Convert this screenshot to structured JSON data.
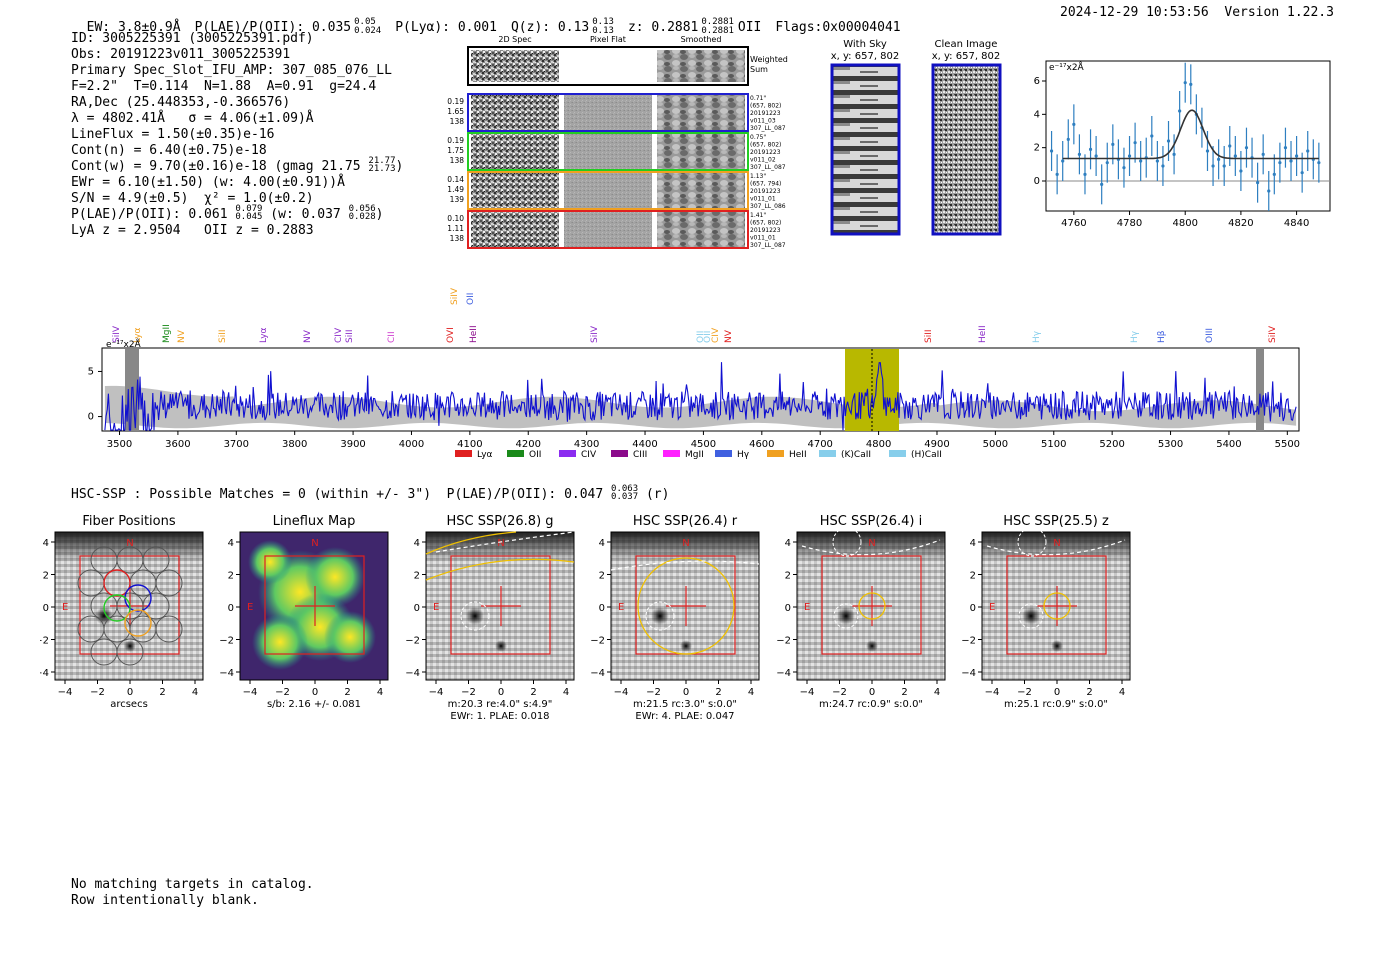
{
  "header": {
    "ew": "EW: 3.8±0.9Å",
    "plae": "P(LAE)/P(OII): 0.035",
    "plae_hi": "0.05",
    "plae_lo": "0.024",
    "plya": "P(Lyα): 0.001",
    "q": "Q(z): 0.13",
    "q_hi": "0.13",
    "q_lo": "0.13",
    "z": "z: 0.2881",
    "z_hi": "0.2881",
    "z_lo": "0.2881",
    "z_line": "OII",
    "flags": "Flags:0x00004041",
    "datetime": "2024-12-29 10:53:56",
    "version": "Version 1.22.3"
  },
  "info": {
    "id": "ID: 3005225391 (3005225391.pdf)",
    "obs": "Obs: 20191223v011_3005225391",
    "slot": "Primary Spec_Slot_IFU_AMP: 307_085_076_LL",
    "params": "F=2.2\"  T=0.114  N=1.88  A=0.91  g=24.4",
    "radec": "RA,Dec (25.448353,-0.366576)",
    "lambda": "λ = 4802.41Å   σ = 4.06(±1.09)Å",
    "lineflux": "LineFlux = 1.50(±0.35)e-16",
    "contn": "Cont(n) = 6.40(±0.75)e-18",
    "contw": "Cont(w) = 9.70(±0.16)e-18 (gmag 21.75",
    "contw_hi": "21.77",
    "contw_lo": "21.73",
    "ewr": "EWr = 6.10(±1.50) (w: 4.00(±0.91))Å",
    "sn": "S/N = 4.9(±0.5)  χ² = 1.0(±0.2)",
    "plae2": "P(LAE)/P(OII): 0.061",
    "plae2_hi": "0.079",
    "plae2_lo": "0.045",
    "plae2_w": "(w: 0.037",
    "plae2_w_hi": "0.056",
    "plae2_w_lo": "0.028",
    "lya_z": "LyA z = 2.9504   OII z = 0.2883"
  },
  "cutouts": {
    "headers": [
      "2D Spec",
      "Pixel Flat",
      "Smoothed"
    ],
    "weighted_label": [
      "Weighted",
      "Sum"
    ],
    "rows": [
      {
        "color": "#1f1fd0",
        "left": [
          "0.19",
          "1.65",
          "138"
        ],
        "right": [
          "0.71\"",
          "(657, 802)",
          "20191223",
          "v011_03",
          "307_LL_087"
        ]
      },
      {
        "color": "#22cc22",
        "left": [
          "0.19",
          "1.75",
          "138"
        ],
        "right": [
          "0.75\"",
          "(657, 802)",
          "20191223",
          "v011_02",
          "307_LL_087"
        ]
      },
      {
        "color": "#f0a020",
        "left": [
          "0.14",
          "1.49",
          "139"
        ],
        "right": [
          "1.13\"",
          "(657, 794)",
          "20191223",
          "v011_01",
          "307_LL_086"
        ]
      },
      {
        "color": "#e02020",
        "left": [
          "0.10",
          "1.11",
          "138"
        ],
        "right": [
          "1.41\"",
          "(657, 802)",
          "20191223",
          "v011_01",
          "307_LL_087"
        ]
      }
    ]
  },
  "ccd": {
    "sky_title": "With Sky",
    "sky_coords": "x, y: 657, 802",
    "clean_title": "Clean Image",
    "clean_coords": "x, y: 657, 802"
  },
  "zoom_plot": {
    "ylabel": "e⁻¹⁷x2Å",
    "xticks": [
      "4760",
      "4780",
      "4800",
      "4820",
      "4840"
    ],
    "yticks": [
      "6",
      "4",
      "2",
      "0"
    ]
  },
  "full_spectrum": {
    "ylabel": "e⁻¹⁷x2Å",
    "xticks": [
      "3500",
      "3600",
      "3700",
      "3800",
      "3900",
      "4000",
      "4100",
      "4200",
      "4300",
      "4400",
      "4500",
      "4600",
      "4700",
      "4800",
      "4900",
      "5000",
      "5100",
      "5200",
      "5300",
      "5400",
      "5500"
    ],
    "yticks": [
      "5",
      "0"
    ],
    "lines": [
      {
        "label": "SiIV",
        "color": "#8b2cc9"
      },
      {
        "label": "Lyα",
        "color": "#f0a020"
      },
      {
        "label": "MgII",
        "color": "#1a8a1a"
      },
      {
        "label": "NV",
        "color": "#f0a020"
      },
      {
        "label": "SiII",
        "color": "#f0a020"
      },
      {
        "label": "Lyα",
        "color": "#8b2cc9"
      },
      {
        "label": "NV",
        "color": "#8b2cc9"
      },
      {
        "label": "CIV",
        "color": "#8b2cc9"
      },
      {
        "label": "SiII",
        "color": "#8b2cc9"
      },
      {
        "label": "CII",
        "color": "#d040d0"
      },
      {
        "label": "OVI",
        "color": "#e02020"
      },
      {
        "label": "SiIV",
        "color": "#f0a020"
      },
      {
        "label": "HeII",
        "color": "#8b0a8b"
      },
      {
        "label": "OII",
        "color": "#4060e0"
      },
      {
        "label": "SiIV",
        "color": "#8b2cc9"
      },
      {
        "label": "OII",
        "color": "#87ceeb"
      },
      {
        "label": "OII",
        "color": "#87ceeb"
      },
      {
        "label": "CIV",
        "color": "#f0a020"
      },
      {
        "label": "NV",
        "color": "#e02020"
      },
      {
        "label": "SiII",
        "color": "#e02020"
      },
      {
        "label": "HeII",
        "color": "#8b2cc9"
      },
      {
        "label": "Hγ",
        "color": "#87ceeb"
      },
      {
        "label": "Hγ",
        "color": "#87ceeb"
      },
      {
        "label": "Hβ",
        "color": "#4060e0"
      },
      {
        "label": "OIII",
        "color": "#4060e0"
      },
      {
        "label": "SiIV",
        "color": "#e02020"
      }
    ],
    "legend": [
      {
        "label": "Lyα",
        "color": "#e02020"
      },
      {
        "label": "OII",
        "color": "#1a8a1a"
      },
      {
        "label": "CIV",
        "color": "#8b2cf0"
      },
      {
        "label": "CIII",
        "color": "#8b0a8b"
      },
      {
        "label": "MgII",
        "color": "#ff20ff"
      },
      {
        "label": "Hγ",
        "color": "#4060e0"
      },
      {
        "label": "HeII",
        "color": "#f0a020"
      },
      {
        "label": "(K)CaII",
        "color": "#87ceeb"
      },
      {
        "label": "(H)CaII",
        "color": "#87ceeb"
      }
    ]
  },
  "hsc": {
    "line": "HSC-SSP : Possible Matches = 0 (within +/- 3\")  P(LAE)/P(OII): 0.047",
    "line_hi": "0.063",
    "line_lo": "0.037",
    "line_tail": "(r)"
  },
  "panels": [
    {
      "title": "Fiber Positions",
      "xlabel": "arcsecs",
      "sub1": "",
      "sub2": ""
    },
    {
      "title": "Lineflux Map",
      "xlabel": "",
      "sub1": "s/b: 2.16 +/- 0.081",
      "sub2": ""
    },
    {
      "title": "HSC SSP(26.8) g",
      "xlabel": "",
      "sub1": "m:20.3  re:4.0\"  s:4.9\"",
      "sub2": "EWr: 1. PLAE: 0.018"
    },
    {
      "title": "HSC SSP(26.4) r",
      "xlabel": "",
      "sub1": "m:21.5 rc:3.0\"  s:0.0\"",
      "sub2": "EWr: 4. PLAE: 0.047"
    },
    {
      "title": "HSC SSP(26.4) i",
      "xlabel": "",
      "sub1": "m:24.7 rc:0.9\"  s:0.0\"",
      "sub2": ""
    },
    {
      "title": "HSC SSP(25.5) z",
      "xlabel": "",
      "sub1": "m:25.1 rc:0.9\"  s:0.0\"",
      "sub2": ""
    }
  ],
  "panel_axis": {
    "xticks": [
      "−4",
      "−2",
      "0",
      "2",
      "4"
    ],
    "yticks": [
      "4",
      "2",
      "0",
      "−2",
      "−4"
    ],
    "north": "N",
    "east": "E"
  },
  "footer": {
    "line1": "No matching targets in catalog.",
    "line2": "Row intentionally blank."
  }
}
